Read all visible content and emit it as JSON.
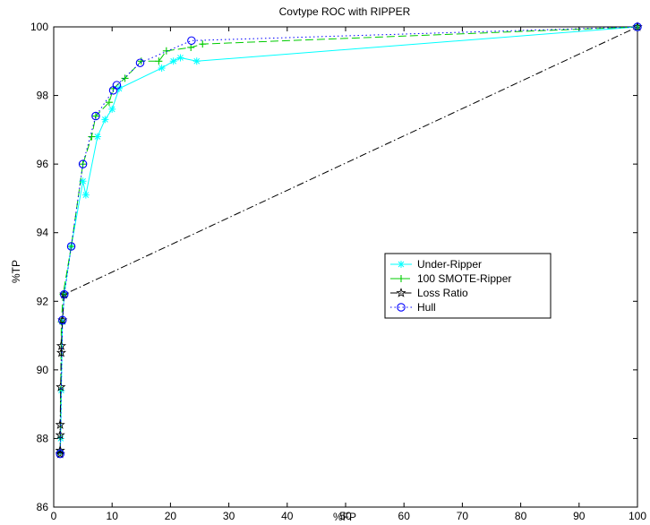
{
  "chart_data": {
    "type": "line",
    "title": "Covtype ROC with RIPPER",
    "xlabel": "%FP",
    "ylabel": "%TP",
    "xlim": [
      0,
      100
    ],
    "ylim": [
      86,
      100
    ],
    "xticks": [
      0,
      10,
      20,
      30,
      40,
      50,
      60,
      70,
      80,
      90,
      100
    ],
    "yticks": [
      86,
      88,
      90,
      92,
      94,
      96,
      98,
      100
    ],
    "grid": false,
    "legend_position": "center-right",
    "series": [
      {
        "name": "Under-Ripper",
        "color": "#00ffff",
        "marker": "asterisk",
        "line": "solid",
        "points": [
          [
            1.1,
            87.6
          ],
          [
            1.2,
            88.0
          ],
          [
            1.3,
            89.4
          ],
          [
            1.5,
            91.4
          ],
          [
            1.8,
            92.2
          ],
          [
            3.0,
            93.6
          ],
          [
            5.0,
            95.5
          ],
          [
            5.5,
            95.1
          ],
          [
            7.5,
            96.8
          ],
          [
            8.8,
            97.3
          ],
          [
            10.0,
            97.6
          ],
          [
            11.2,
            98.2
          ],
          [
            18.5,
            98.8
          ],
          [
            20.5,
            99.0
          ],
          [
            21.7,
            99.1
          ],
          [
            24.5,
            99.0
          ],
          [
            100,
            100
          ]
        ]
      },
      {
        "name": "100 SMOTE-Ripper",
        "color": "#00cc00",
        "marker": "plus",
        "line": "dashed",
        "points": [
          [
            1.1,
            87.6
          ],
          [
            1.3,
            91.4
          ],
          [
            1.6,
            92.2
          ],
          [
            3.0,
            93.6
          ],
          [
            5.0,
            96.0
          ],
          [
            6.5,
            96.8
          ],
          [
            7.2,
            97.4
          ],
          [
            9.5,
            97.8
          ],
          [
            10.2,
            98.2
          ],
          [
            12.2,
            98.5
          ],
          [
            15.0,
            99.0
          ],
          [
            18.0,
            99.0
          ],
          [
            19.3,
            99.3
          ],
          [
            23.5,
            99.4
          ],
          [
            25.5,
            99.5
          ],
          [
            100,
            100
          ]
        ]
      },
      {
        "name": "Loss Ratio",
        "color": "#000000",
        "marker": "star",
        "line": "dashdot",
        "points": [
          [
            1.1,
            87.55
          ],
          [
            1.1,
            87.65
          ],
          [
            1.1,
            88.1
          ],
          [
            1.1,
            88.4
          ],
          [
            1.2,
            89.5
          ],
          [
            1.3,
            90.5
          ],
          [
            1.3,
            90.7
          ],
          [
            1.5,
            91.45
          ],
          [
            1.8,
            92.2
          ],
          [
            100,
            100
          ]
        ]
      },
      {
        "name": "Hull",
        "color": "#0000ff",
        "marker": "circle",
        "line": "dotted",
        "points": [
          [
            1.1,
            87.55
          ],
          [
            1.5,
            91.45
          ],
          [
            1.8,
            92.2
          ],
          [
            3.0,
            93.6
          ],
          [
            5.0,
            96.0
          ],
          [
            7.2,
            97.4
          ],
          [
            10.2,
            98.15
          ],
          [
            10.8,
            98.3
          ],
          [
            14.8,
            98.95
          ],
          [
            23.6,
            99.6
          ],
          [
            100,
            100
          ]
        ]
      }
    ]
  }
}
